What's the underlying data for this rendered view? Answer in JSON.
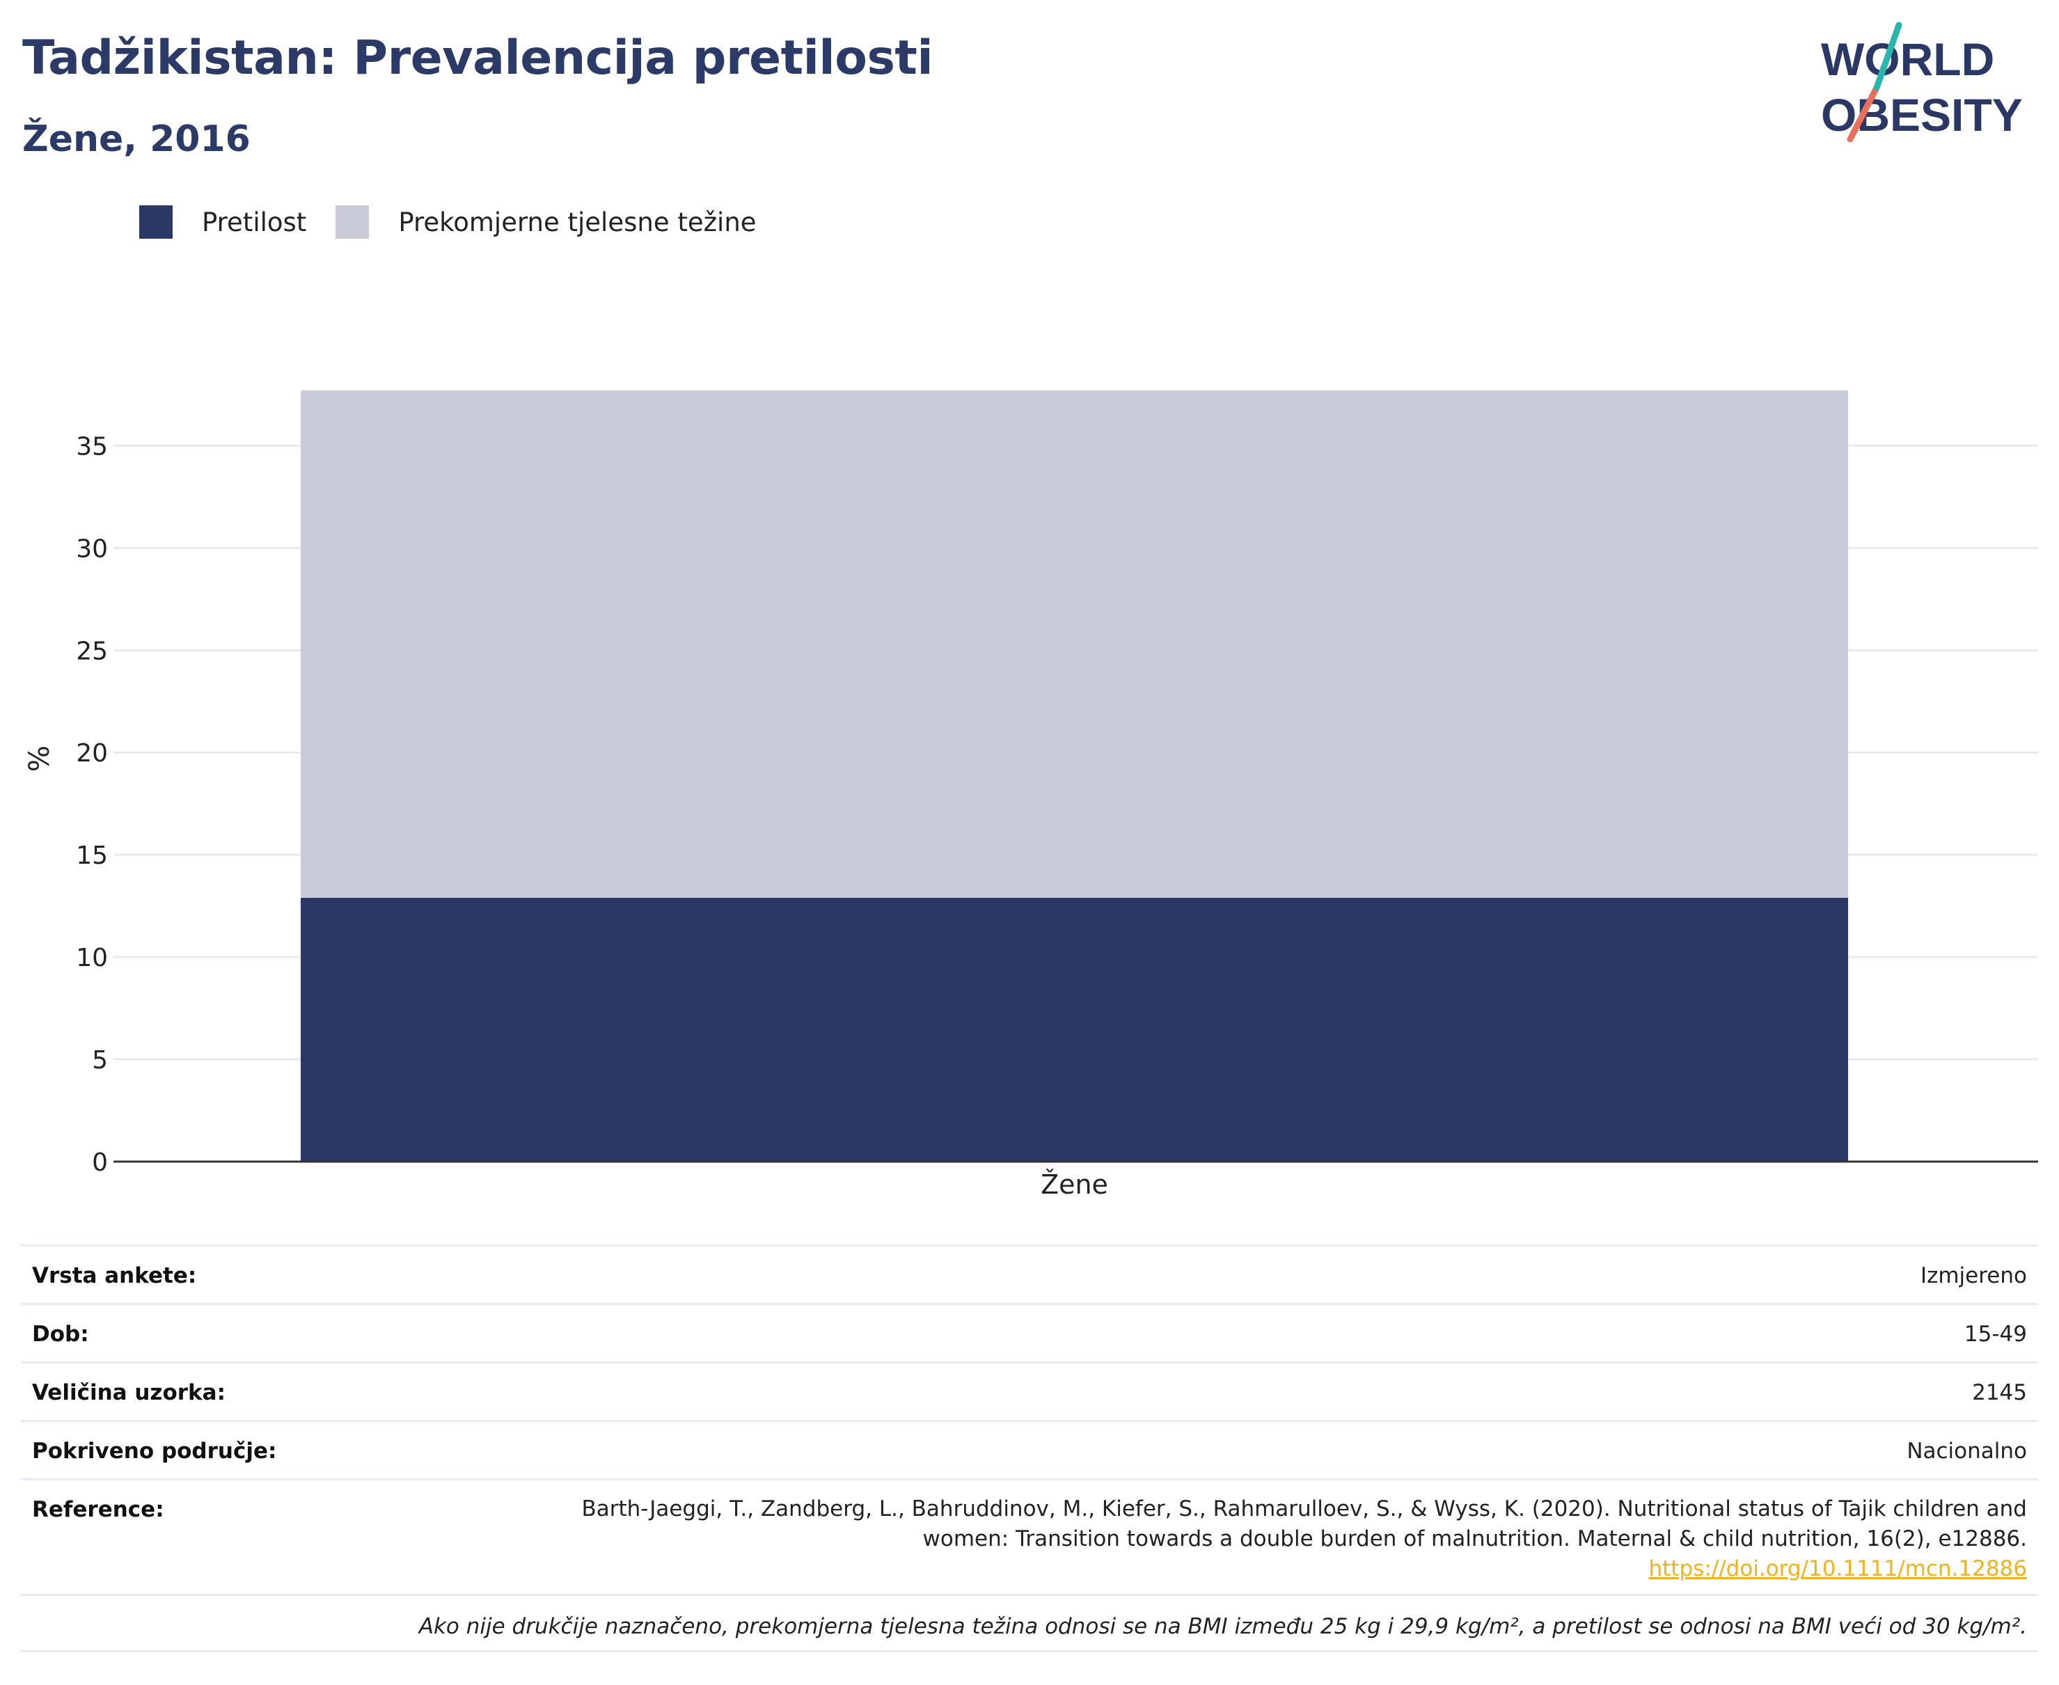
{
  "header": {
    "title": "Tadžikistan: Prevalencija pretilosti",
    "subtitle": "Žene, 2016"
  },
  "logo": {
    "line1": "WORLD",
    "line2": "OBESITY"
  },
  "legend": [
    {
      "label": "Pretilost",
      "color": "#2b3764"
    },
    {
      "label": "Prekomjerne tjelesne težine",
      "color": "#c9ccd8"
    }
  ],
  "chart_data": {
    "type": "bar",
    "stacked": true,
    "categories": [
      "Žene"
    ],
    "series": [
      {
        "name": "Pretilost",
        "values": [
          12.9
        ],
        "color": "#2b3764"
      },
      {
        "name": "Prekomjerne tjelesne težine",
        "values": [
          24.8
        ],
        "color": "#c9ccd8"
      }
    ],
    "ylabel": "%",
    "xlabel": "",
    "ylim": [
      0,
      37.7
    ],
    "yticks": [
      0,
      5,
      10,
      15,
      20,
      25,
      30,
      35
    ],
    "grid": true,
    "legend_position": "top-left"
  },
  "info": {
    "survey_type": {
      "key": "Vrsta ankete:",
      "value": "Izmjereno"
    },
    "age": {
      "key": "Dob:",
      "value": "15-49"
    },
    "sample_size": {
      "key": "Veličina uzorka:",
      "value": "2145"
    },
    "coverage": {
      "key": "Pokriveno područje:",
      "value": "Nacionalno"
    },
    "reference": {
      "key": "Reference:",
      "line1": "Barth-Jaeggi, T., Zandberg, L., Bahruddinov, M., Kiefer, S., Rahmarulloev, S., & Wyss, K. (2020). Nutritional status of Tajik children and",
      "line2": "women: Transition towards a double burden of malnutrition. Maternal & child nutrition, 16(2), e12886.",
      "link": "https://doi.org/10.1111/mcn.12886"
    },
    "note": "Ako nije drukčije naznačeno, prekomjerna tjelesna težina odnosi se na BMI između 25 kg i 29,9 kg/m², a pretilost se odnosi na BMI veći od 30 kg/m²."
  }
}
